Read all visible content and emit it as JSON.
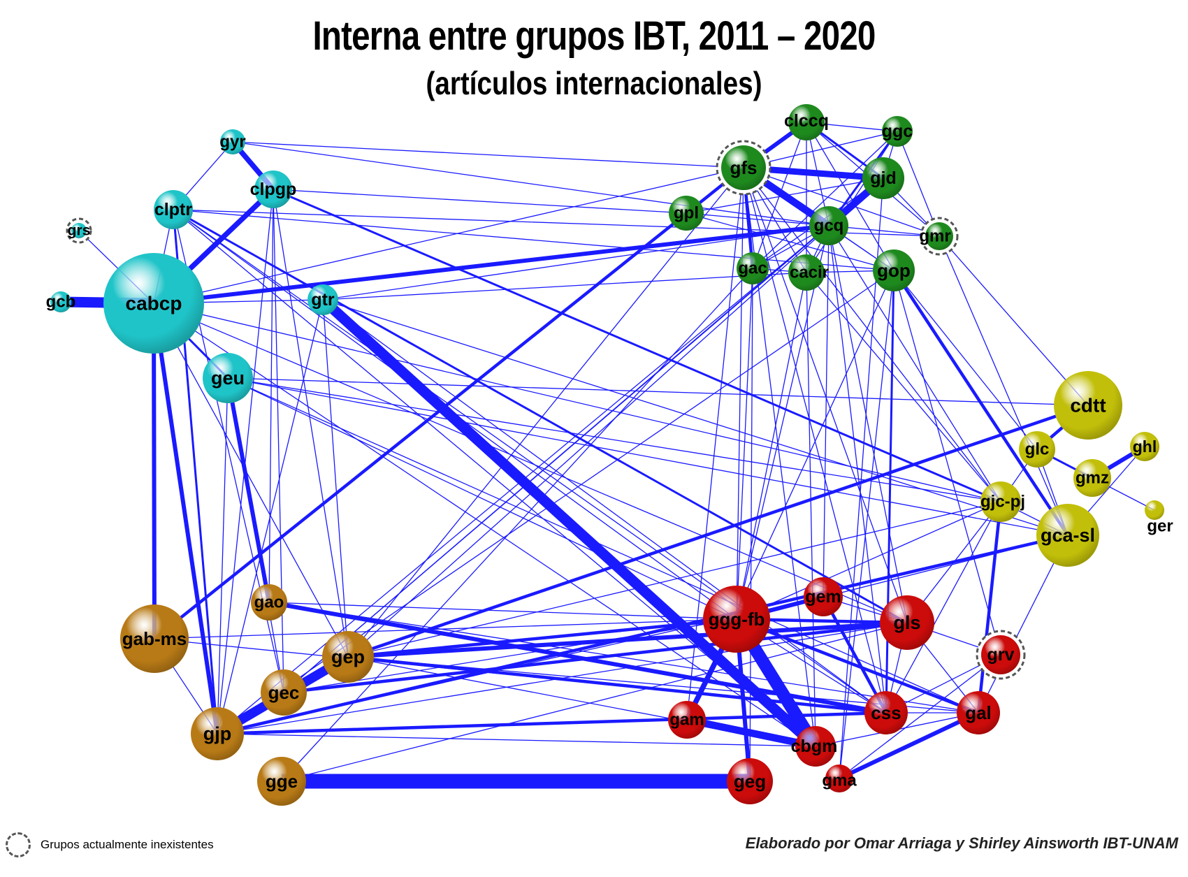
{
  "title": "Interna entre grupos IBT, 2011 – 2020",
  "subtitle": "(artículos internacionales)",
  "legend_label": "Grupos actualmente inexistentes",
  "credit": "Elaborado por Omar Arriaga y Shirley Ainsworth IBT-UNAM",
  "edge_color": "#1a1aff",
  "colors": {
    "cyan": "#1fc4c8",
    "green": "#1e8a1e",
    "yellow": "#c2bf0a",
    "orange": "#b87a16",
    "red": "#cc0b0b"
  },
  "nodes": [
    {
      "id": "gyr",
      "group": "cyan",
      "defunct": false
    },
    {
      "id": "clpgp",
      "group": "cyan",
      "defunct": false
    },
    {
      "id": "clptr",
      "group": "cyan",
      "defunct": false
    },
    {
      "id": "grs",
      "group": "cyan",
      "defunct": true
    },
    {
      "id": "gcb",
      "group": "cyan",
      "defunct": false
    },
    {
      "id": "cabcp",
      "group": "cyan",
      "defunct": false
    },
    {
      "id": "gtr",
      "group": "cyan",
      "defunct": false
    },
    {
      "id": "geu",
      "group": "cyan",
      "defunct": false
    },
    {
      "id": "clccq",
      "group": "green",
      "defunct": false
    },
    {
      "id": "ggc",
      "group": "green",
      "defunct": false
    },
    {
      "id": "gfs",
      "group": "green",
      "defunct": true
    },
    {
      "id": "gjd",
      "group": "green",
      "defunct": false
    },
    {
      "id": "gpl",
      "group": "green",
      "defunct": false
    },
    {
      "id": "gcq",
      "group": "green",
      "defunct": false
    },
    {
      "id": "gmr",
      "group": "green",
      "defunct": true
    },
    {
      "id": "gac",
      "group": "green",
      "defunct": false
    },
    {
      "id": "cacir",
      "group": "green",
      "defunct": false
    },
    {
      "id": "gop",
      "group": "green",
      "defunct": false
    },
    {
      "id": "cdtt",
      "group": "yellow",
      "defunct": false
    },
    {
      "id": "glc",
      "group": "yellow",
      "defunct": false
    },
    {
      "id": "ghl",
      "group": "yellow",
      "defunct": false
    },
    {
      "id": "gmz",
      "group": "yellow",
      "defunct": false
    },
    {
      "id": "gjc-pj",
      "group": "yellow",
      "defunct": false
    },
    {
      "id": "ger",
      "group": "yellow",
      "defunct": false
    },
    {
      "id": "gca-sl",
      "group": "yellow",
      "defunct": false
    },
    {
      "id": "gao",
      "group": "orange",
      "defunct": false
    },
    {
      "id": "gab-ms",
      "group": "orange",
      "defunct": false
    },
    {
      "id": "gep",
      "group": "orange",
      "defunct": false
    },
    {
      "id": "gec",
      "group": "orange",
      "defunct": false
    },
    {
      "id": "gjp",
      "group": "orange",
      "defunct": false
    },
    {
      "id": "gge",
      "group": "orange",
      "defunct": false
    },
    {
      "id": "ggg-fb",
      "group": "red",
      "defunct": false
    },
    {
      "id": "gem",
      "group": "red",
      "defunct": false
    },
    {
      "id": "gls",
      "group": "red",
      "defunct": false
    },
    {
      "id": "grv",
      "group": "red",
      "defunct": true
    },
    {
      "id": "gam",
      "group": "red",
      "defunct": false
    },
    {
      "id": "css",
      "group": "red",
      "defunct": false
    },
    {
      "id": "gal",
      "group": "red",
      "defunct": false
    },
    {
      "id": "cbgm",
      "group": "red",
      "defunct": false
    },
    {
      "id": "geg",
      "group": "red",
      "defunct": false
    },
    {
      "id": "gma",
      "group": "red",
      "defunct": false
    }
  ],
  "edges": [
    {
      "from": "gge",
      "to": "geg",
      "weight": 14
    },
    {
      "from": "gtr",
      "to": "cbgm",
      "weight": 10
    },
    {
      "from": "ggg-fb",
      "to": "cbgm",
      "weight": 12
    },
    {
      "from": "gcb",
      "to": "cabcp",
      "weight": 10
    },
    {
      "from": "gjp",
      "to": "gep",
      "weight": 9
    },
    {
      "from": "gfs",
      "to": "gcq",
      "weight": 7
    },
    {
      "from": "gam",
      "to": "cbgm",
      "weight": 7
    },
    {
      "from": "gjd",
      "to": "gcq",
      "weight": 7
    },
    {
      "from": "gfs",
      "to": "gjd",
      "weight": 6
    },
    {
      "from": "cabcp",
      "to": "clpgp",
      "weight": 5
    },
    {
      "from": "gyr",
      "to": "clpgp",
      "weight": 5
    },
    {
      "from": "cabcp",
      "to": "gab-ms",
      "weight": 4
    },
    {
      "from": "cabcp",
      "to": "gjp",
      "weight": 4
    },
    {
      "from": "cabcp",
      "to": "gcq",
      "weight": 4
    },
    {
      "from": "geu",
      "to": "gao",
      "weight": 4
    },
    {
      "from": "ggg-fb",
      "to": "gam",
      "weight": 5
    },
    {
      "from": "ggg-fb",
      "to": "geg",
      "weight": 4
    },
    {
      "from": "gep",
      "to": "gls",
      "weight": 4
    },
    {
      "from": "gep",
      "to": "ggg-fb",
      "weight": 3
    },
    {
      "from": "gec",
      "to": "gls",
      "weight": 3
    },
    {
      "from": "gao",
      "to": "css",
      "weight": 4
    },
    {
      "from": "gep",
      "to": "css",
      "weight": 3
    },
    {
      "from": "gjp",
      "to": "css",
      "weight": 3
    },
    {
      "from": "ggg-fb",
      "to": "gem",
      "weight": 4
    },
    {
      "from": "ggg-fb",
      "to": "gls",
      "weight": 3
    },
    {
      "from": "gem",
      "to": "css",
      "weight": 3
    },
    {
      "from": "ggg-fb",
      "to": "gal",
      "weight": 3
    },
    {
      "from": "gma",
      "to": "gal",
      "weight": 4
    },
    {
      "from": "css",
      "to": "gop",
      "weight": 2
    },
    {
      "from": "gab-ms",
      "to": "gfs",
      "weight": 3
    },
    {
      "from": "gep",
      "to": "cdtt",
      "weight": 3
    },
    {
      "from": "gjp",
      "to": "gca-sl",
      "weight": 3
    },
    {
      "from": "gjc-pj",
      "to": "gal",
      "weight": 3
    },
    {
      "from": "cdtt",
      "to": "glc",
      "weight": 3
    },
    {
      "from": "gmz",
      "to": "ghl",
      "weight": 4
    },
    {
      "from": "glc",
      "to": "gmz",
      "weight": 2
    },
    {
      "from": "gop",
      "to": "gca-sl",
      "weight": 3
    },
    {
      "from": "clptr",
      "to": "gls",
      "weight": 2
    },
    {
      "from": "clpgp",
      "to": "gjc-pj",
      "weight": 2
    },
    {
      "from": "gfs",
      "to": "clccq",
      "weight": 4
    },
    {
      "from": "gfs",
      "to": "gac",
      "weight": 3
    },
    {
      "from": "clptr",
      "to": "gjp",
      "weight": 2
    },
    {
      "from": "clccq",
      "to": "gjd",
      "weight": 2
    },
    {
      "from": "ggc",
      "to": "gcq",
      "weight": 2
    },
    {
      "from": "geu",
      "to": "gjp",
      "weight": 1
    },
    {
      "from": "cabcp",
      "to": "gtr",
      "weight": 1
    },
    {
      "from": "cabcp",
      "to": "geu",
      "weight": 2
    },
    {
      "from": "cabcp",
      "to": "clptr",
      "weight": 1
    },
    {
      "from": "grs",
      "to": "cabcp",
      "weight": 1
    },
    {
      "from": "cabcp",
      "to": "gls",
      "weight": 1
    },
    {
      "from": "cabcp",
      "to": "gjc-pj",
      "weight": 1
    },
    {
      "from": "cabcp",
      "to": "gfs",
      "weight": 1
    },
    {
      "from": "cabcp",
      "to": "gep",
      "weight": 1
    },
    {
      "from": "cabcp",
      "to": "cbgm",
      "weight": 1
    },
    {
      "from": "gyr",
      "to": "gfs",
      "weight": 1
    },
    {
      "from": "gyr",
      "to": "gcq",
      "weight": 1
    },
    {
      "from": "gyr",
      "to": "clptr",
      "weight": 1
    },
    {
      "from": "clpgp",
      "to": "gep",
      "weight": 1
    },
    {
      "from": "clpgp",
      "to": "gec",
      "weight": 1
    },
    {
      "from": "clpgp",
      "to": "gjp",
      "weight": 1
    },
    {
      "from": "clpgp",
      "to": "gpl",
      "weight": 1
    },
    {
      "from": "clpgp",
      "to": "gao",
      "weight": 1
    },
    {
      "from": "clptr",
      "to": "cbgm",
      "weight": 1
    },
    {
      "from": "clptr",
      "to": "ggg-fb",
      "weight": 1
    },
    {
      "from": "clptr",
      "to": "css",
      "weight": 1
    },
    {
      "from": "clptr",
      "to": "gmr",
      "weight": 1
    },
    {
      "from": "clptr",
      "to": "gop",
      "weight": 1
    },
    {
      "from": "clptr",
      "to": "gec",
      "weight": 1
    },
    {
      "from": "gtr",
      "to": "gca-sl",
      "weight": 1
    },
    {
      "from": "gtr",
      "to": "gjp",
      "weight": 1
    },
    {
      "from": "gtr",
      "to": "gep",
      "weight": 1
    },
    {
      "from": "gtr",
      "to": "gcq",
      "weight": 1
    },
    {
      "from": "gtr",
      "to": "css",
      "weight": 1
    },
    {
      "from": "gtr",
      "to": "cacir",
      "weight": 1
    },
    {
      "from": "geu",
      "to": "gjc-pj",
      "weight": 1
    },
    {
      "from": "geu",
      "to": "gca-sl",
      "weight": 1
    },
    {
      "from": "geu",
      "to": "ggg-fb",
      "weight": 1
    },
    {
      "from": "geu",
      "to": "gal",
      "weight": 1
    },
    {
      "from": "geu",
      "to": "gec",
      "weight": 1
    },
    {
      "from": "geu",
      "to": "cdtt",
      "weight": 1
    },
    {
      "from": "gab-ms",
      "to": "ggg-fb",
      "weight": 1
    },
    {
      "from": "gab-ms",
      "to": "gjp",
      "weight": 1
    },
    {
      "from": "gab-ms",
      "to": "css",
      "weight": 1
    },
    {
      "from": "gjp",
      "to": "gcq",
      "weight": 1
    },
    {
      "from": "gjp",
      "to": "gop",
      "weight": 1
    },
    {
      "from": "gjp",
      "to": "gem",
      "weight": 1
    },
    {
      "from": "gjp",
      "to": "cbgm",
      "weight": 1
    },
    {
      "from": "gjp",
      "to": "gls",
      "weight": 1
    },
    {
      "from": "gge",
      "to": "gac",
      "weight": 1
    },
    {
      "from": "gge",
      "to": "gls",
      "weight": 1
    },
    {
      "from": "gep",
      "to": "gfs",
      "weight": 1
    },
    {
      "from": "gep",
      "to": "gjd",
      "weight": 1
    },
    {
      "from": "gep",
      "to": "gal",
      "weight": 1
    },
    {
      "from": "gep",
      "to": "cbgm",
      "weight": 1
    },
    {
      "from": "gep",
      "to": "gjc-pj",
      "weight": 1
    },
    {
      "from": "gao",
      "to": "ggg-fb",
      "weight": 1
    },
    {
      "from": "gao",
      "to": "gal",
      "weight": 1
    },
    {
      "from": "gec",
      "to": "ggg-fb",
      "weight": 1
    },
    {
      "from": "gec",
      "to": "gcq",
      "weight": 1
    },
    {
      "from": "gec",
      "to": "gjd",
      "weight": 1
    },
    {
      "from": "ggg-fb",
      "to": "gfs",
      "weight": 1
    },
    {
      "from": "ggg-fb",
      "to": "cacir",
      "weight": 1
    },
    {
      "from": "ggg-fb",
      "to": "gcq",
      "weight": 1
    },
    {
      "from": "ggg-fb",
      "to": "gjc-pj",
      "weight": 1
    },
    {
      "from": "ggg-fb",
      "to": "gca-sl",
      "weight": 1
    },
    {
      "from": "ggg-fb",
      "to": "css",
      "weight": 1
    },
    {
      "from": "ggg-fb",
      "to": "gac",
      "weight": 1
    },
    {
      "from": "gem",
      "to": "gls",
      "weight": 1
    },
    {
      "from": "gem",
      "to": "gcq",
      "weight": 1
    },
    {
      "from": "gls",
      "to": "grv",
      "weight": 1
    },
    {
      "from": "gls",
      "to": "gal",
      "weight": 1
    },
    {
      "from": "gls",
      "to": "css",
      "weight": 1
    },
    {
      "from": "gls",
      "to": "gcq",
      "weight": 1
    },
    {
      "from": "gls",
      "to": "gjc-pj",
      "weight": 1
    },
    {
      "from": "gls",
      "to": "gfs",
      "weight": 1
    },
    {
      "from": "grv",
      "to": "gma",
      "weight": 1
    },
    {
      "from": "grv",
      "to": "css",
      "weight": 1
    },
    {
      "from": "grv",
      "to": "gop",
      "weight": 1
    },
    {
      "from": "gam",
      "to": "css",
      "weight": 1
    },
    {
      "from": "gam",
      "to": "gop",
      "weight": 1
    },
    {
      "from": "gam",
      "to": "gfs",
      "weight": 1
    },
    {
      "from": "css",
      "to": "gal",
      "weight": 1
    },
    {
      "from": "css",
      "to": "gcq",
      "weight": 1
    },
    {
      "from": "css",
      "to": "gjc-pj",
      "weight": 1
    },
    {
      "from": "css",
      "to": "gfs",
      "weight": 1
    },
    {
      "from": "gal",
      "to": "gca-sl",
      "weight": 1
    },
    {
      "from": "cbgm",
      "to": "gfs",
      "weight": 1
    },
    {
      "from": "cbgm",
      "to": "cacir",
      "weight": 1
    },
    {
      "from": "cbgm",
      "to": "gal",
      "weight": 1
    },
    {
      "from": "geg",
      "to": "gac",
      "weight": 1
    },
    {
      "from": "gma",
      "to": "gjd",
      "weight": 1
    },
    {
      "from": "gma",
      "to": "gop",
      "weight": 1
    },
    {
      "from": "gfs",
      "to": "gpl",
      "weight": 1
    },
    {
      "from": "gfs",
      "to": "cacir",
      "weight": 1
    },
    {
      "from": "gfs",
      "to": "gmr",
      "weight": 1
    },
    {
      "from": "gfs",
      "to": "gop",
      "weight": 1
    },
    {
      "from": "gfs",
      "to": "ggc",
      "weight": 1
    },
    {
      "from": "gfs",
      "to": "gjc-pj",
      "weight": 1
    },
    {
      "from": "clccq",
      "to": "ggc",
      "weight": 1
    },
    {
      "from": "clccq",
      "to": "gcq",
      "weight": 1
    },
    {
      "from": "clccq",
      "to": "gac",
      "weight": 1
    },
    {
      "from": "clccq",
      "to": "cacir",
      "weight": 1
    },
    {
      "from": "clccq",
      "to": "gop",
      "weight": 1
    },
    {
      "from": "clccq",
      "to": "gmr",
      "weight": 1
    },
    {
      "from": "ggc",
      "to": "gjd",
      "weight": 1
    },
    {
      "from": "ggc",
      "to": "gmr",
      "weight": 1
    },
    {
      "from": "ggc",
      "to": "cacir",
      "weight": 1
    },
    {
      "from": "ggc",
      "to": "gac",
      "weight": 1
    },
    {
      "from": "gjd",
      "to": "gmr",
      "weight": 1
    },
    {
      "from": "gjd",
      "to": "gpl",
      "weight": 1
    },
    {
      "from": "gjd",
      "to": "gac",
      "weight": 1
    },
    {
      "from": "gpl",
      "to": "gcq",
      "weight": 1
    },
    {
      "from": "gpl",
      "to": "gop",
      "weight": 1
    },
    {
      "from": "gcq",
      "to": "gop",
      "weight": 1
    },
    {
      "from": "gcq",
      "to": "gmr",
      "weight": 1
    },
    {
      "from": "gcq",
      "to": "gac",
      "weight": 1
    },
    {
      "from": "gcq",
      "to": "cacir",
      "weight": 1
    },
    {
      "from": "gcq",
      "to": "gjc-pj",
      "weight": 1
    },
    {
      "from": "gmr",
      "to": "cdtt",
      "weight": 1
    },
    {
      "from": "gmr",
      "to": "gca-sl",
      "weight": 1
    },
    {
      "from": "gac",
      "to": "cacir",
      "weight": 1
    },
    {
      "from": "cacir",
      "to": "gop",
      "weight": 1
    },
    {
      "from": "cacir",
      "to": "gjc-pj",
      "weight": 1
    },
    {
      "from": "glc",
      "to": "gjc-pj",
      "weight": 1
    },
    {
      "from": "glc",
      "to": "gca-sl",
      "weight": 1
    },
    {
      "from": "gmz",
      "to": "ger",
      "weight": 1
    },
    {
      "from": "ghl",
      "to": "gca-sl",
      "weight": 1
    },
    {
      "from": "gjc-pj",
      "to": "gca-sl",
      "weight": 1
    },
    {
      "from": "glc",
      "to": "gop",
      "weight": 1
    }
  ]
}
